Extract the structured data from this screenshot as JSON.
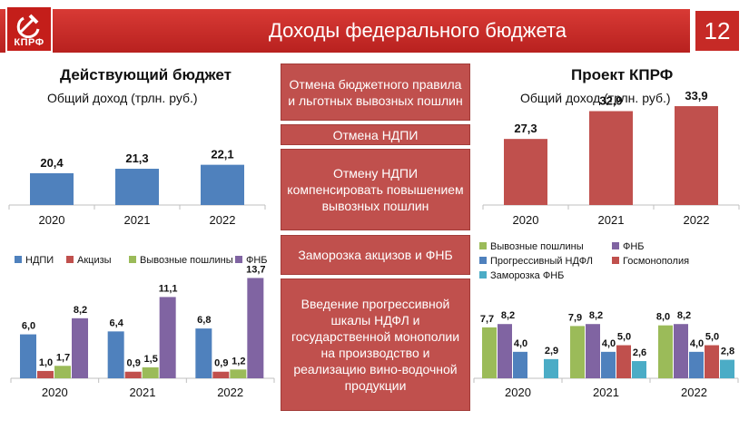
{
  "header": {
    "title": "Доходы федерального бюджета",
    "page_number": "12",
    "logo_text": "КПРФ"
  },
  "left": {
    "title": "Действующий бюджет",
    "subtitle": "Общий доход (трлн. руб.)"
  },
  "right": {
    "title": "Проект КПРФ",
    "subtitle": "Общий доход (трлн. руб.)"
  },
  "measures": [
    "Отмена бюджетного правила и льготных вывозных пошлин",
    "Отмена НДПИ",
    "Отмену НДПИ компенсировать повышением вывозных пошлин",
    "Заморозка акцизов и ФНБ",
    "Введение прогрессивной шкалы НДФЛ и государственной монополии на производство и реализацию вино-водочной продукции"
  ],
  "chart_data": [
    {
      "id": "current-total",
      "type": "bar",
      "categories": [
        "2020",
        "2021",
        "2022"
      ],
      "series": [
        {
          "values": [
            20.4,
            21.3,
            22.1
          ],
          "labels": [
            "20,4",
            "21,3",
            "22,1"
          ],
          "color": "#4f81bd"
        }
      ],
      "ylim": [
        14,
        35
      ]
    },
    {
      "id": "kprf-total",
      "type": "bar",
      "categories": [
        "2020",
        "2021",
        "2022"
      ],
      "series": [
        {
          "values": [
            27.3,
            32.9,
            33.9
          ],
          "labels": [
            "27,3",
            "32,9",
            "33,9"
          ],
          "color": "#c0504d"
        }
      ],
      "ylim": [
        14,
        35
      ]
    },
    {
      "id": "current-structure",
      "type": "bar",
      "categories": [
        "2020",
        "2021",
        "2022"
      ],
      "legend": "top",
      "series": [
        {
          "name": "НДПИ",
          "color": "#4f81bd",
          "values": [
            6.0,
            6.4,
            6.8
          ],
          "labels": [
            "6,0",
            "6,4",
            "6,8"
          ]
        },
        {
          "name": "Акцизы",
          "color": "#c0504d",
          "values": [
            1.0,
            0.9,
            0.9
          ],
          "labels": [
            "1,0",
            "0,9",
            "0,9"
          ]
        },
        {
          "name": "Вывозные пошлины",
          "color": "#9bbb59",
          "values": [
            1.7,
            1.5,
            1.2
          ],
          "labels": [
            "1,7",
            "1,5",
            "1,2"
          ]
        },
        {
          "name": "ФНБ",
          "color": "#8064a2",
          "values": [
            8.2,
            11.1,
            13.7
          ],
          "labels": [
            "8,2",
            "11,1",
            "13,7"
          ]
        }
      ],
      "ylim": [
        0,
        14
      ]
    },
    {
      "id": "kprf-structure",
      "type": "bar",
      "categories": [
        "2020",
        "2021",
        "2022"
      ],
      "legend": "top",
      "series": [
        {
          "name": "Вывозные пошлины",
          "color": "#9bbb59",
          "values": [
            7.7,
            7.9,
            8.0
          ],
          "labels": [
            "7,7",
            "7,9",
            "8,0"
          ]
        },
        {
          "name": "ФНБ",
          "color": "#8064a2",
          "values": [
            8.2,
            8.2,
            8.2
          ],
          "labels": [
            "8,2",
            "8,2",
            "8,2"
          ]
        },
        {
          "name": "Прогрессивный НДФЛ",
          "color": "#4f81bd",
          "values": [
            4.0,
            4.0,
            4.0
          ],
          "labels": [
            "4,0",
            "4,0",
            "4,0"
          ]
        },
        {
          "name": "Госмонополия",
          "color": "#c0504d",
          "values": [
            null,
            5.0,
            5.0
          ],
          "labels": [
            "",
            "5,0",
            "5,0"
          ]
        },
        {
          "name": "Заморозка ФНБ",
          "color": "#4bacc6",
          "values": [
            2.9,
            2.6,
            2.8
          ],
          "labels": [
            "2,9",
            "2,6",
            "2,8"
          ]
        }
      ],
      "ylim": [
        0,
        9.6
      ]
    }
  ]
}
